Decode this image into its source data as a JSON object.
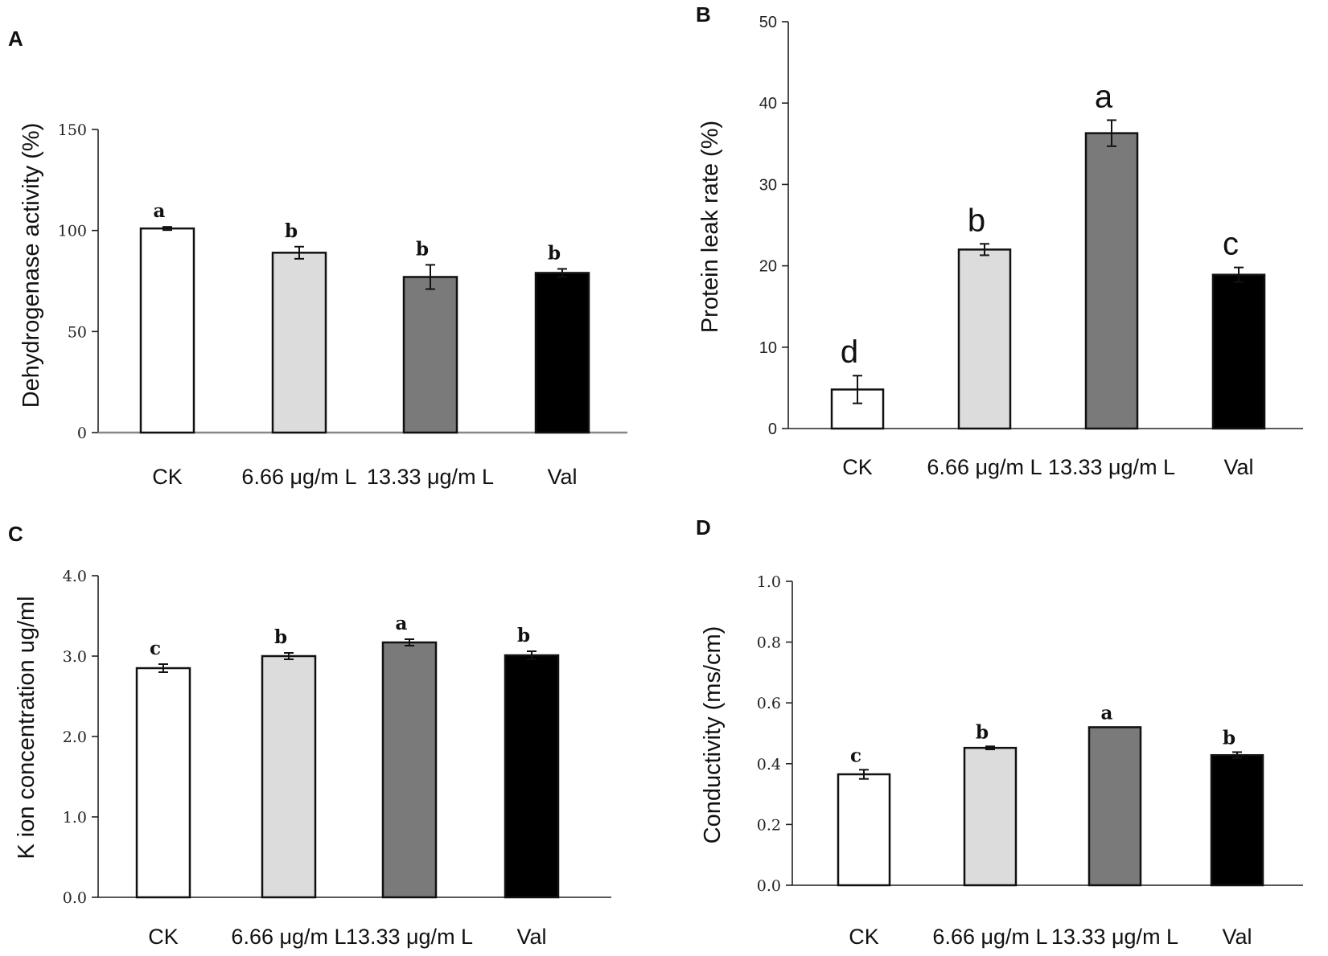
{
  "chart_data": [
    {
      "panel": "A",
      "type": "bar",
      "categories": [
        "CK",
        "6.66 μg/m L",
        "13.33 μg/m L",
        "Val"
      ],
      "values": [
        101,
        89,
        77,
        79
      ],
      "errors": [
        0.8,
        3,
        6,
        2
      ],
      "significance": [
        "a",
        "b",
        "b",
        "b"
      ],
      "colors": [
        "#ffffff",
        "#dcdcdc",
        "#7a7a7a",
        "#000000"
      ],
      "ylabel": "Dehydrogenase activity (%)",
      "ylim": [
        0,
        150
      ],
      "yticks": [
        0,
        50,
        100,
        150
      ],
      "ytick_labels": [
        "0",
        "50",
        "100",
        "150"
      ]
    },
    {
      "panel": "B",
      "type": "bar",
      "categories": [
        "CK",
        "6.66 μg/m L",
        "13.33 μg/m L",
        "Val"
      ],
      "values": [
        4.8,
        22,
        36.3,
        18.9
      ],
      "errors": [
        1.7,
        0.7,
        1.6,
        0.9
      ],
      "significance": [
        "d",
        "b",
        "a",
        "c"
      ],
      "colors": [
        "#ffffff",
        "#dcdcdc",
        "#7a7a7a",
        "#000000"
      ],
      "ylabel": "Protein leak rate (%)",
      "ylim": [
        0,
        50
      ],
      "yticks": [
        0,
        10,
        20,
        30,
        40,
        50
      ],
      "ytick_labels": [
        "0",
        "10",
        "20",
        "30",
        "40",
        "50"
      ]
    },
    {
      "panel": "C",
      "type": "bar",
      "categories": [
        "CK",
        "6.66 μg/m L",
        "13.33 μg/m L",
        "Val"
      ],
      "values": [
        2.85,
        3.0,
        3.17,
        3.01
      ],
      "errors": [
        0.05,
        0.04,
        0.04,
        0.05
      ],
      "significance": [
        "c",
        "b",
        "a",
        "b"
      ],
      "colors": [
        "#ffffff",
        "#dcdcdc",
        "#7a7a7a",
        "#000000"
      ],
      "ylabel": "K ion concentration ug/ml",
      "ylim": [
        0,
        4
      ],
      "yticks": [
        0,
        1,
        2,
        3,
        4
      ],
      "ytick_labels": [
        "0.0",
        "1.0",
        "2.0",
        "3.0",
        "4.0"
      ]
    },
    {
      "panel": "D",
      "type": "bar",
      "categories": [
        "CK",
        "6.66 μg/m L",
        "13.33 μg/m L",
        "Val"
      ],
      "values": [
        0.365,
        0.452,
        0.52,
        0.428
      ],
      "errors": [
        0.015,
        0.005,
        0.0,
        0.01
      ],
      "significance": [
        "c",
        "b",
        "a",
        "b"
      ],
      "colors": [
        "#ffffff",
        "#dcdcdc",
        "#7a7a7a",
        "#000000"
      ],
      "ylabel": "Conductivity (ms/cm)",
      "ylim": [
        0,
        1
      ],
      "yticks": [
        0,
        0.2,
        0.4,
        0.6,
        0.8,
        1.0
      ],
      "ytick_labels": [
        "0.0",
        "0.2",
        "0.4",
        "0.6",
        "0.8",
        "1.0"
      ]
    }
  ]
}
